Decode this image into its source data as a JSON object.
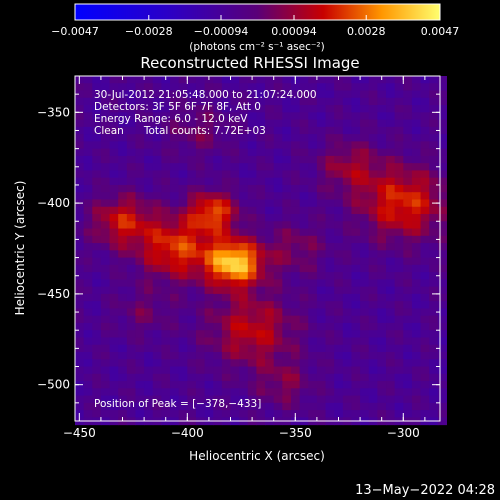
{
  "chart_data": {
    "type": "heatmap",
    "title": "Reconstructed RHESSI Image",
    "xlabel": "Heliocentric X (arcsec)",
    "ylabel": "Heliocentric Y (arcsec)",
    "xlim": [
      -452,
      -283
    ],
    "ylim": [
      -520,
      -330
    ],
    "x_ticks": [
      -450,
      -400,
      -350,
      -300
    ],
    "y_ticks": [
      -350,
      -400,
      -450,
      -500
    ],
    "x_tick_labels": [
      "−450",
      "−400",
      "−350",
      "−300"
    ],
    "y_tick_labels": [
      "−350",
      "−400",
      "−450",
      "−500"
    ],
    "colorbar": {
      "range": [
        -0.0047,
        0.0047
      ],
      "ticks": [
        -0.0047,
        -0.0028,
        -0.00094,
        0.00094,
        0.0028,
        0.0047
      ],
      "tick_labels": [
        "−0.0047",
        "−0.0028",
        "−0.00094",
        "0.00094",
        "0.0028",
        "0.0047"
      ],
      "units": "(photons cm⁻² s⁻¹ asec⁻²)"
    },
    "annotations": [
      "30-Jul-2012 21:05:48.000 to 21:07:24.000",
      "Detectors: 3F 5F 6F 7F 8F, Att 0",
      "Energy Range: 6.0 - 12.0 keV",
      "Clean      Total counts: 7.72E+03"
    ],
    "peak_label": "Position of Peak = [−378,−433]",
    "peak": [
      -378,
      -433
    ],
    "sources": [
      {
        "x": -378,
        "y": -433,
        "sigma": 9,
        "amp": 0.0047
      },
      {
        "x": -388,
        "y": -405,
        "sigma": 8,
        "amp": 0.003
      },
      {
        "x": -405,
        "y": -425,
        "sigma": 12,
        "amp": 0.0029
      },
      {
        "x": -430,
        "y": -410,
        "sigma": 10,
        "amp": 0.0024
      },
      {
        "x": -370,
        "y": -470,
        "sigma": 14,
        "amp": 0.0022
      },
      {
        "x": -300,
        "y": -400,
        "sigma": 14,
        "amp": 0.0028
      },
      {
        "x": -325,
        "y": -380,
        "sigma": 10,
        "amp": 0.0016
      },
      {
        "x": -350,
        "y": -425,
        "sigma": 10,
        "amp": 0.0012
      },
      {
        "x": -395,
        "y": -360,
        "sigma": 10,
        "amp": 0.001
      },
      {
        "x": -355,
        "y": -500,
        "sigma": 9,
        "amp": 0.0012
      },
      {
        "x": -420,
        "y": -460,
        "sigma": 9,
        "amp": 0.0009
      }
    ]
  },
  "timestamp": "13−May−2022 04:28"
}
